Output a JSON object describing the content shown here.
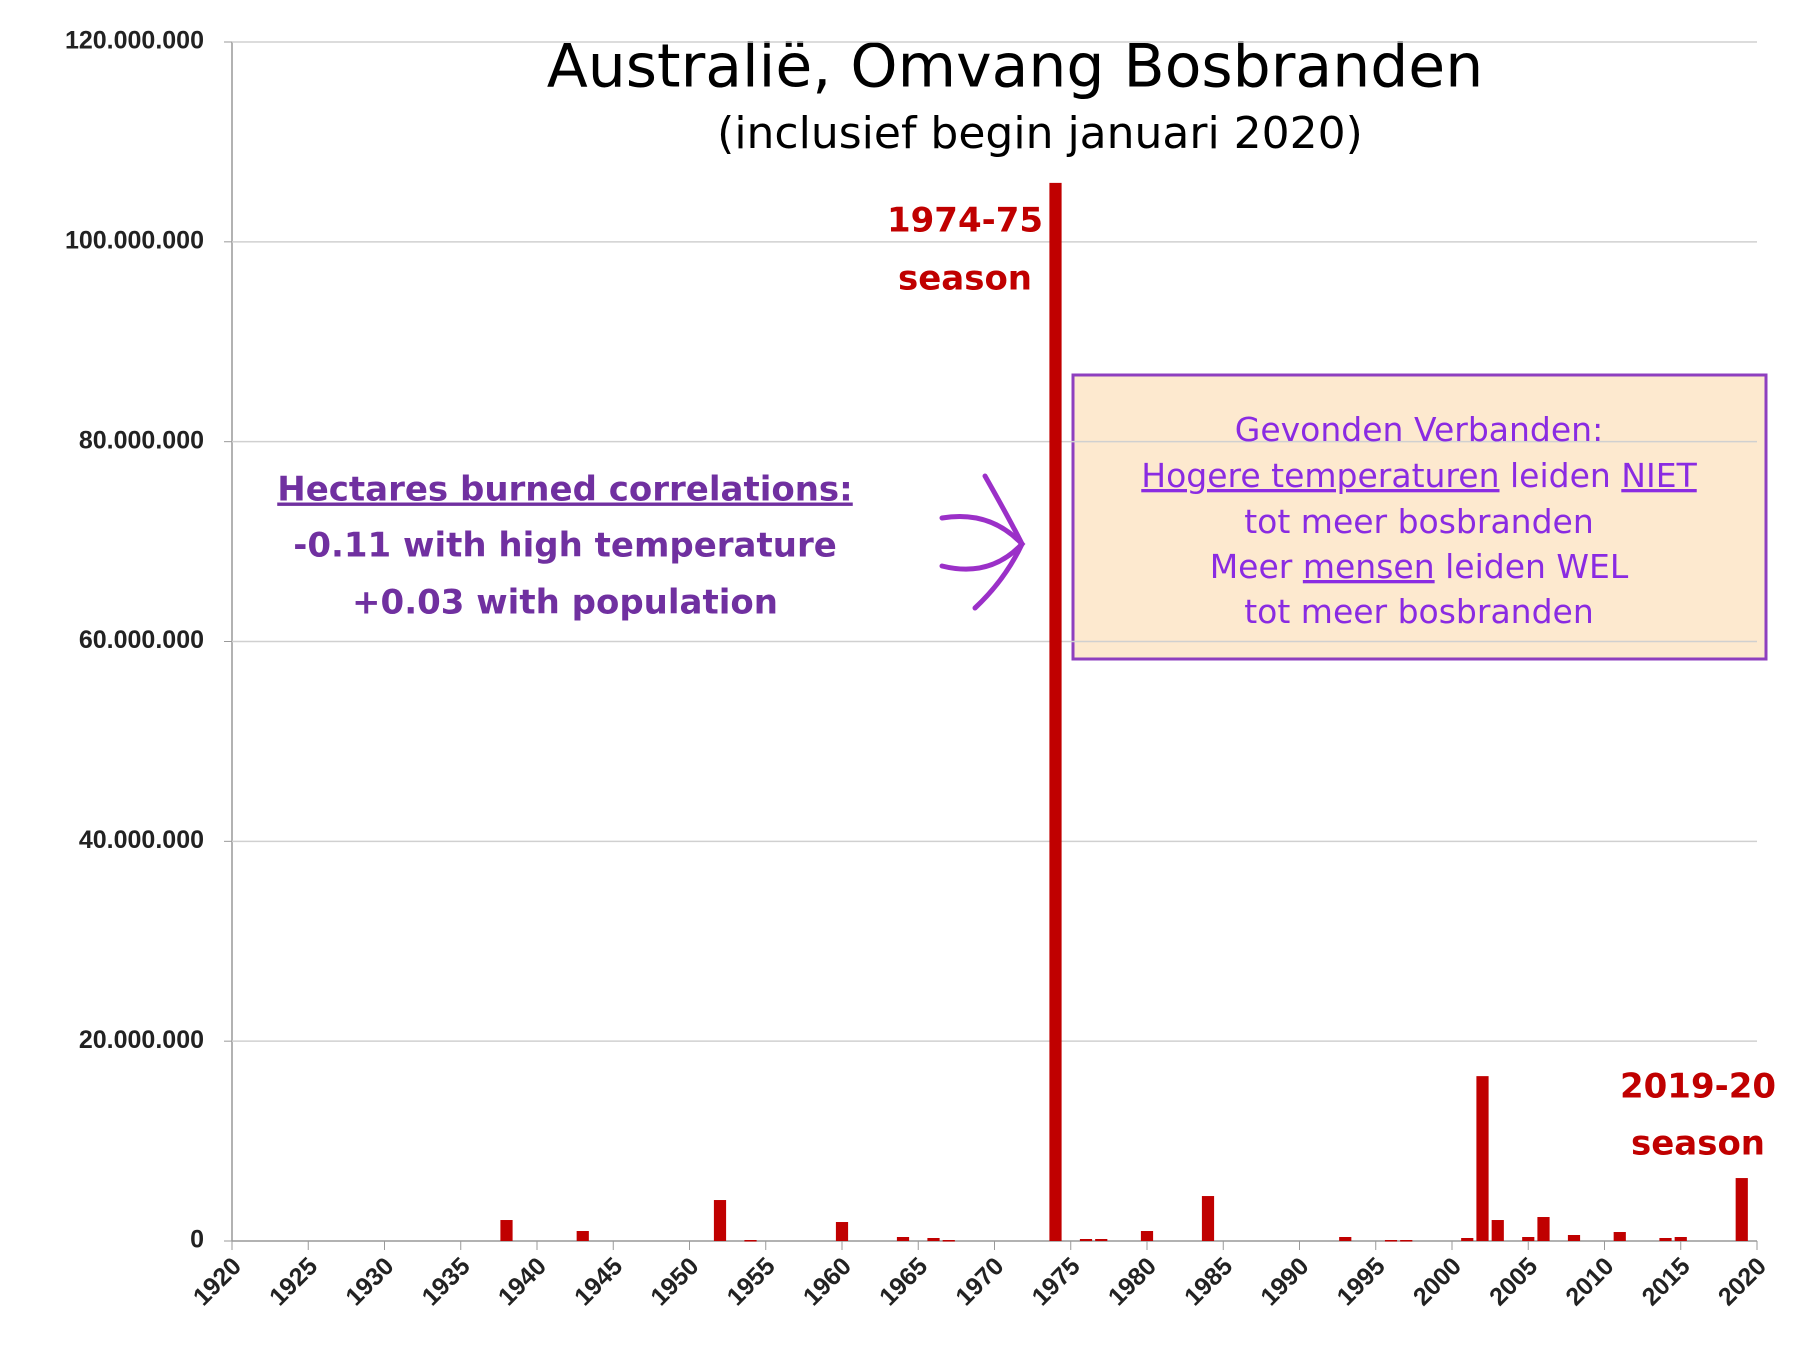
{
  "chart_data": {
    "type": "bar",
    "title": "Australië, Omvang Bosbranden",
    "subtitle": "(inclusief begin januari 2020)",
    "x": [
      1938,
      1943,
      1952,
      1954,
      1960,
      1964,
      1966,
      1967,
      1974,
      1976,
      1977,
      1980,
      1984,
      1993,
      1996,
      1997,
      2001,
      2002,
      2003,
      2005,
      2006,
      2008,
      2011,
      2014,
      2015,
      2019
    ],
    "values": [
      2100000,
      1000000,
      4100000,
      100000,
      1900000,
      400000,
      300000,
      100000,
      105900000,
      200000,
      200000,
      1000000,
      4500000,
      400000,
      100000,
      100000,
      300000,
      16500000,
      2100000,
      400000,
      2400000,
      600000,
      900000,
      300000,
      400000,
      6300000
    ],
    "color": "#c00000",
    "xlim": [
      1920,
      2020
    ],
    "xticks": [
      1920,
      1925,
      1930,
      1935,
      1940,
      1945,
      1950,
      1955,
      1960,
      1965,
      1970,
      1975,
      1980,
      1985,
      1990,
      1995,
      2000,
      2005,
      2010,
      2015,
      2020
    ],
    "ylim": [
      0,
      120000000
    ],
    "yticks": [
      0,
      {
        "value": 20000000,
        "label": "20.000.000"
      },
      {
        "value": 40000000,
        "label": "40.000.000"
      },
      {
        "value": 60000000,
        "label": "60.000.000"
      },
      {
        "value": 80000000,
        "label": "80.000.000"
      },
      {
        "value": 100000000,
        "label": "100.000.000"
      },
      {
        "value": 120000000,
        "label": "120.000.000"
      }
    ],
    "grid": true,
    "annotations": {
      "peak_label": [
        "1974-75",
        "season"
      ],
      "last_label": [
        "2019-20",
        "season"
      ],
      "correlations": [
        "Hectares burned correlations:",
        "-0.11 with high temperature",
        "+0.03 with population"
      ],
      "box_lines": [
        [
          {
            "text": "Gevonden Verbanden:"
          }
        ],
        [
          {
            "text": "Hogere temperaturen",
            "underline": true
          },
          {
            "text": " leiden "
          },
          {
            "text": "NIET",
            "underline": true
          }
        ],
        [
          {
            "text": "tot meer bosbranden"
          }
        ],
        [
          {
            "text": "Meer "
          },
          {
            "text": "mensen",
            "underline": true
          },
          {
            "text": " leiden WEL"
          }
        ],
        [
          {
            "text": "tot meer bosbranden"
          }
        ]
      ]
    }
  }
}
